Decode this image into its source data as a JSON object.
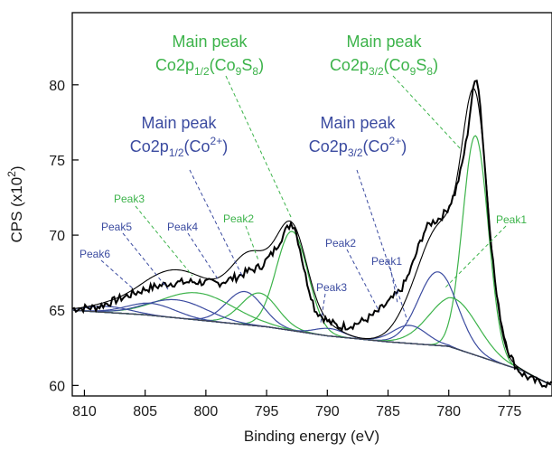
{
  "chart_data": {
    "type": "line",
    "xlabel": "Binding energy (eV)",
    "ylabel_parts": {
      "base": "CPS (x10",
      "sup": "2",
      "end": ")"
    },
    "xlim": [
      811,
      771.5
    ],
    "ylim": [
      59.3,
      84.8
    ],
    "x_ticks": [
      810,
      805,
      800,
      795,
      790,
      785,
      780,
      775
    ],
    "y_ticks": [
      60,
      65,
      70,
      75,
      80
    ],
    "colors": {
      "measured": "#000000",
      "fit": "#000000",
      "green": "#3cb34a",
      "blue": "#3b4ba0",
      "background": "#333333"
    },
    "background_line": {
      "x": [
        811,
        805,
        800,
        795,
        790,
        785,
        780,
        777,
        774,
        771.5
      ],
      "y": [
        65.0,
        64.7,
        64.3,
        63.9,
        63.3,
        62.9,
        62.6,
        61.8,
        61.0,
        60.0
      ]
    },
    "measured": {
      "x": [
        811,
        809,
        807,
        805,
        803,
        801,
        799,
        797.5,
        796.5,
        795.5,
        794.5,
        793.5,
        793,
        792.7,
        792.3,
        791.8,
        791,
        790,
        789,
        788,
        787,
        786,
        785,
        784,
        783.5,
        783,
        782.5,
        782,
        781.5,
        781,
        780.5,
        780,
        779.5,
        779,
        778.5,
        778.2,
        777.9,
        777.7,
        777.5,
        777.3,
        777,
        776.7,
        776.3,
        776,
        775.5,
        775,
        774.5,
        774,
        773,
        772,
        771.5
      ],
      "y": [
        65.1,
        65.2,
        65.8,
        66.4,
        66.8,
        66.9,
        66.8,
        67.2,
        67.6,
        67.9,
        68.8,
        70.2,
        70.8,
        70.6,
        69.3,
        67.3,
        65.0,
        64.3,
        63.9,
        64.0,
        64.3,
        64.8,
        65.5,
        66.3,
        67.0,
        68.0,
        69.2,
        70.3,
        70.8,
        71.0,
        71.3,
        71.9,
        72.8,
        74.3,
        76.5,
        78.5,
        80.1,
        80.5,
        79.6,
        77.5,
        74.3,
        71.0,
        67.8,
        65.6,
        63.5,
        62.1,
        61.3,
        60.8,
        60.3,
        60.1,
        60.0
      ]
    },
    "peaks": [
      {
        "name": "Main peak Co2p1/2(Co9S8)",
        "group": "green",
        "center": 792.9,
        "height": 6.6,
        "width": 1.3
      },
      {
        "name": "Main peak Co2p3/2(Co9S8)",
        "group": "green",
        "center": 777.8,
        "height": 14.6,
        "width": 1.05
      },
      {
        "name": "Main peak Co2p1/2(Co2+)",
        "group": "blue",
        "center": 796.8,
        "height": 2.2,
        "width": 1.5
      },
      {
        "name": "Main peak Co2p3/2(Co2+)",
        "group": "blue",
        "center": 780.9,
        "height": 4.9,
        "width": 1.6
      },
      {
        "name": "Peak1",
        "group": "green",
        "center": 779.6,
        "height": 3.3,
        "width": 2.0
      },
      {
        "name": "Peak2 (green)",
        "group": "green",
        "center": 795.6,
        "height": 2.2,
        "width": 1.5
      },
      {
        "name": "Peak2 (blue)",
        "group": "blue",
        "center": 783.2,
        "height": 1.2,
        "width": 1.4
      },
      {
        "name": "Peak3 (green)",
        "group": "green",
        "center": 800.7,
        "height": 1.8,
        "width": 3.0
      },
      {
        "name": "Peak3 (blue)",
        "group": "blue",
        "center": 789.8,
        "height": 0.5,
        "width": 1.2
      },
      {
        "name": "Peak4",
        "group": "blue",
        "center": 802.4,
        "height": 1.2,
        "width": 2.5
      },
      {
        "name": "Peak5",
        "group": "blue",
        "center": 804.5,
        "height": 0.8,
        "width": 2.0
      },
      {
        "name": "Peak6",
        "group": "blue",
        "center": 808.0,
        "height": 0.4,
        "width": 1.8
      }
    ],
    "annotations": {
      "co9s8_half": {
        "line1": "Main peak",
        "base": "Co2p",
        "sub1": "1/2",
        "paren_open": "(Co",
        "sub2": "9",
        "mid": "S",
        "sub3": "8",
        "paren_close": ")"
      },
      "co9s8_three_half": {
        "line1": "Main peak",
        "base": "Co2p",
        "sub1": "3/2",
        "paren_open": "(Co",
        "sub2": "9",
        "mid": "S",
        "sub3": "8",
        "paren_close": ")"
      },
      "co2_half": {
        "line1": "Main peak",
        "base": "Co2p",
        "sub1": "1/2",
        "paren_open": "(Co",
        "sup": "2+",
        "paren_close": ")"
      },
      "co2_three_half": {
        "line1": "Main peak",
        "base": "Co2p",
        "sub1": "3/2",
        "paren_open": "(Co",
        "sup": "2+",
        "paren_close": ")"
      },
      "small_labels": {
        "peak1": "Peak1",
        "peak2_green": "Peak2",
        "peak3_green": "Peak3",
        "peak4": "Peak4",
        "peak5": "Peak5",
        "peak6": "Peak6",
        "peak2_blue": "Peak2",
        "peak3_blue": "Peak3",
        "peak1_blue": "Peak1"
      }
    }
  }
}
